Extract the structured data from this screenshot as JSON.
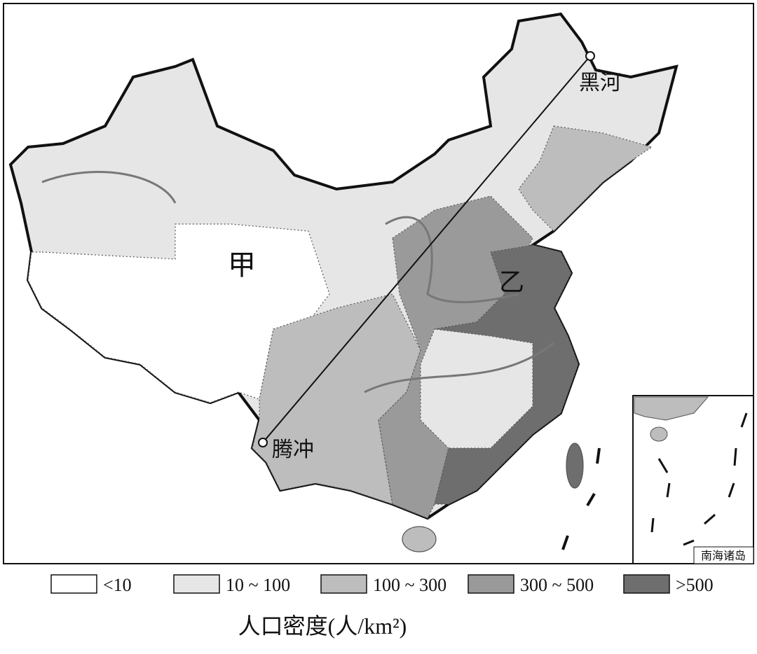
{
  "map": {
    "places": {
      "heihe": "黑河",
      "tengchong": "腾冲",
      "jia": "甲",
      "yi": "乙"
    },
    "inset_label": "南海诸岛",
    "legend": [
      {
        "label": "<10",
        "color": "#ffffff"
      },
      {
        "label": "10 ~ 100",
        "color": "#e6e6e6"
      },
      {
        "label": "100 ~ 300",
        "color": "#bdbdbd"
      },
      {
        "label": "300 ~ 500",
        "color": "#9a9a9a"
      },
      {
        "label": ">500",
        "color": "#6e6e6e"
      }
    ],
    "title": "人口密度(人/km²)"
  }
}
